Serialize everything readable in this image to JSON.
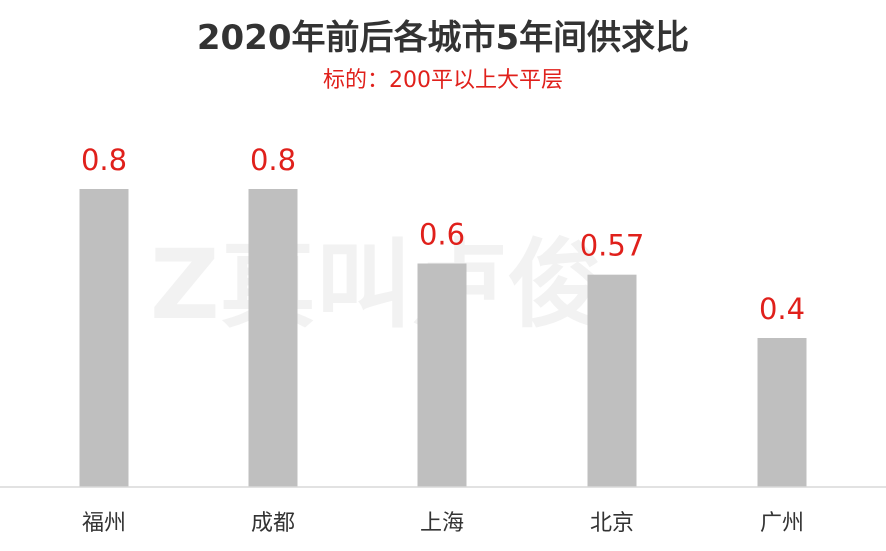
{
  "chart_data": {
    "type": "bar",
    "title": "2020年前后各城市5年间供求比",
    "subtitle": "标的：200平以上大平层",
    "categories": [
      "福州",
      "成都",
      "上海",
      "北京",
      "广州"
    ],
    "values": [
      0.8,
      0.8,
      0.6,
      0.57,
      0.4
    ],
    "data_labels": [
      "0.8",
      "0.8",
      "0.6",
      "0.57",
      "0.4"
    ],
    "xlabel": "",
    "ylabel": "",
    "ylim": [
      0,
      1.0
    ],
    "grid": false,
    "legend": "none"
  },
  "colors": {
    "bar": "#bfbfbf",
    "data_label": "#e0201b",
    "title": "#333333",
    "subtitle": "#e0201b",
    "axis": "#d9d9d9",
    "category_label": "#333333",
    "watermark": "#f2f2f2"
  },
  "watermark": {
    "logo_text": "Z真叫卢俊"
  }
}
